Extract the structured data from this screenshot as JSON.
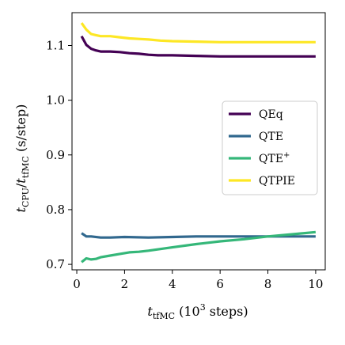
{
  "chart_data": {
    "type": "line",
    "xlabel": {
      "main": "t",
      "sub": "tfMC",
      "rest": " (10",
      "sup": "3",
      "tail": " steps)"
    },
    "ylabel": {
      "t1": "t",
      "sub1": "CPU",
      "slash": "/",
      "t2": "t",
      "sub2": "tfMC",
      "units": " (s/step)"
    },
    "xlim": [
      -0.2,
      10.4
    ],
    "ylim": [
      0.69,
      1.16
    ],
    "xticks": [
      0,
      2,
      4,
      6,
      8,
      10
    ],
    "xtick_labels": [
      "0",
      "2",
      "4",
      "6",
      "8",
      "10"
    ],
    "yticks": [
      0.7,
      0.8,
      0.9,
      1.0,
      1.1
    ],
    "ytick_labels": [
      "0.7",
      "0.8",
      "0.9",
      "1.0",
      "1.1"
    ],
    "grid": false,
    "legend_position": "right",
    "series": [
      {
        "name": "QEq",
        "legend": {
          "text": "QEq"
        },
        "color": "#440154",
        "x": [
          0.2,
          0.4,
          0.6,
          0.8,
          1.0,
          1.4,
          1.8,
          2.2,
          2.6,
          3.0,
          3.4,
          4.0,
          5.0,
          6.0,
          7.0,
          8.0,
          9.0,
          10.0
        ],
        "y": [
          1.117,
          1.101,
          1.094,
          1.091,
          1.089,
          1.089,
          1.088,
          1.086,
          1.085,
          1.083,
          1.082,
          1.082,
          1.081,
          1.08,
          1.08,
          1.08,
          1.08,
          1.08
        ]
      },
      {
        "name": "QTE",
        "legend": {
          "text": "QTE"
        },
        "color": "#31688e",
        "x": [
          0.2,
          0.4,
          0.6,
          1.0,
          1.4,
          2.0,
          3.0,
          4.0,
          5.0,
          6.0,
          7.0,
          8.0,
          9.0,
          10.0
        ],
        "y": [
          0.757,
          0.751,
          0.751,
          0.749,
          0.749,
          0.75,
          0.749,
          0.75,
          0.751,
          0.751,
          0.751,
          0.751,
          0.751,
          0.751
        ]
      },
      {
        "name": "QTE+",
        "legend": {
          "text": "QTE",
          "sup": "+"
        },
        "color": "#35b779",
        "x": [
          0.2,
          0.4,
          0.6,
          0.8,
          1.0,
          1.4,
          1.8,
          2.2,
          2.6,
          3.0,
          3.5,
          4.0,
          5.0,
          6.0,
          7.0,
          8.0,
          9.0,
          10.0
        ],
        "y": [
          0.704,
          0.711,
          0.709,
          0.71,
          0.713,
          0.716,
          0.719,
          0.722,
          0.723,
          0.725,
          0.728,
          0.731,
          0.737,
          0.742,
          0.746,
          0.751,
          0.755,
          0.759
        ]
      },
      {
        "name": "QTPIE",
        "legend": {
          "text": "QTPIE"
        },
        "color": "#fde725",
        "x": [
          0.2,
          0.4,
          0.6,
          0.8,
          1.0,
          1.4,
          1.8,
          2.2,
          2.6,
          3.0,
          3.5,
          4.0,
          5.0,
          6.0,
          7.0,
          8.0,
          9.0,
          10.0
        ],
        "y": [
          1.141,
          1.129,
          1.121,
          1.119,
          1.117,
          1.117,
          1.115,
          1.113,
          1.112,
          1.111,
          1.109,
          1.108,
          1.107,
          1.106,
          1.106,
          1.106,
          1.106,
          1.106
        ]
      }
    ]
  }
}
